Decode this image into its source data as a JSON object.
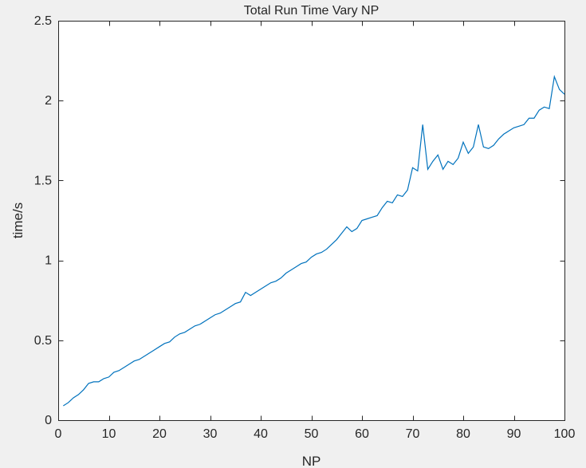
{
  "chart_data": {
    "type": "line",
    "title": "Total Run Time Vary NP",
    "xlabel": "NP",
    "ylabel": "time/s",
    "xlim": [
      0,
      100
    ],
    "ylim": [
      0,
      2.5
    ],
    "xticks": [
      0,
      10,
      20,
      30,
      40,
      50,
      60,
      70,
      80,
      90,
      100
    ],
    "yticks": [
      0,
      0.5,
      1,
      1.5,
      2,
      2.5
    ],
    "xtick_labels": [
      "0",
      "10",
      "20",
      "30",
      "40",
      "50",
      "60",
      "70",
      "80",
      "90",
      "100"
    ],
    "ytick_labels": [
      "0",
      "0.5",
      "1",
      "1.5",
      "2",
      "2.5"
    ],
    "grid": false,
    "line_color": "#0072BD",
    "series": [
      {
        "x": [
          1,
          2,
          3,
          4,
          5,
          6,
          7,
          8,
          9,
          10,
          11,
          12,
          13,
          14,
          15,
          16,
          17,
          18,
          19,
          20,
          21,
          22,
          23,
          24,
          25,
          26,
          27,
          28,
          29,
          30,
          31,
          32,
          33,
          34,
          35,
          36,
          37,
          38,
          39,
          40,
          41,
          42,
          43,
          44,
          45,
          46,
          47,
          48,
          49,
          50,
          51,
          52,
          53,
          54,
          55,
          56,
          57,
          58,
          59,
          60,
          61,
          62,
          63,
          64,
          65,
          66,
          67,
          68,
          69,
          70,
          71,
          72,
          73,
          74,
          75,
          76,
          77,
          78,
          79,
          80,
          81,
          82,
          83,
          84,
          85,
          86,
          87,
          88,
          89,
          90,
          91,
          92,
          93,
          94,
          95,
          96,
          97,
          98,
          99,
          100
        ],
        "y": [
          0.09,
          0.11,
          0.14,
          0.16,
          0.19,
          0.23,
          0.24,
          0.24,
          0.26,
          0.27,
          0.3,
          0.31,
          0.33,
          0.35,
          0.37,
          0.38,
          0.4,
          0.42,
          0.44,
          0.46,
          0.48,
          0.49,
          0.52,
          0.54,
          0.55,
          0.57,
          0.59,
          0.6,
          0.62,
          0.64,
          0.66,
          0.67,
          0.69,
          0.71,
          0.73,
          0.74,
          0.8,
          0.78,
          0.8,
          0.82,
          0.84,
          0.86,
          0.87,
          0.89,
          0.92,
          0.94,
          0.96,
          0.98,
          0.99,
          1.02,
          1.04,
          1.05,
          1.07,
          1.1,
          1.13,
          1.17,
          1.21,
          1.18,
          1.2,
          1.25,
          1.26,
          1.27,
          1.28,
          1.33,
          1.37,
          1.36,
          1.41,
          1.4,
          1.44,
          1.58,
          1.56,
          1.85,
          1.57,
          1.62,
          1.66,
          1.57,
          1.62,
          1.6,
          1.64,
          1.74,
          1.67,
          1.71,
          1.85,
          1.71,
          1.7,
          1.72,
          1.76,
          1.79,
          1.81,
          1.83,
          1.84,
          1.85,
          1.89,
          1.89,
          1.94,
          1.96,
          1.95,
          2.15,
          2.07,
          2.04
        ]
      }
    ]
  }
}
